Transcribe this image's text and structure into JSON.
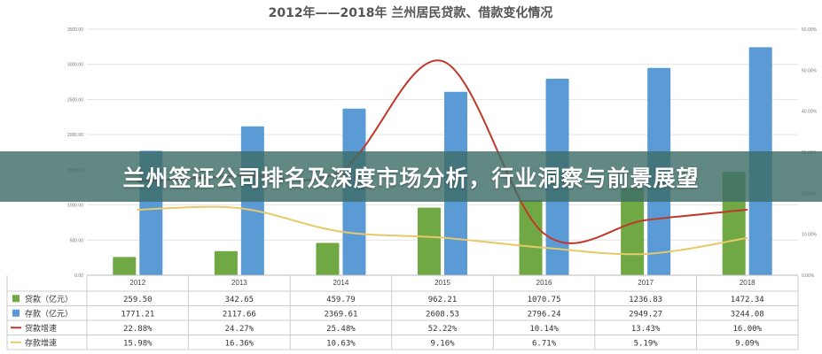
{
  "chart_data": {
    "type": "bar",
    "title": "2012年——2018年 兰州居民贷款、借款变化情况",
    "categories": [
      "2012",
      "2013",
      "2014",
      "2015",
      "2016",
      "2017",
      "2018"
    ],
    "bar_series": [
      {
        "name": "贷款（亿元）",
        "color": "#70a844",
        "values": [
          "259.50",
          "342.65",
          "459.79",
          "962.21",
          "1070.75",
          "1236.83",
          "1472.34"
        ]
      },
      {
        "name": "存款（亿元）",
        "color": "#5b9bd5",
        "values": [
          "1771.21",
          "2117.66",
          "2369.61",
          "2608.53",
          "2796.24",
          "2949.27",
          "3244.08"
        ]
      }
    ],
    "line_series": [
      {
        "name": "贷款增速",
        "color": "#c0392b",
        "values": [
          "22.88%",
          "24.27%",
          "25.48%",
          "52.22%",
          "10.14%",
          "13.43%",
          "16.00%"
        ]
      },
      {
        "name": "存款增速",
        "color": "#e8c96a",
        "values": [
          "15.98%",
          "16.36%",
          "10.63%",
          "9.16%",
          "6.71%",
          "5.19%",
          "9.09%"
        ]
      }
    ],
    "y_left": {
      "ticks": [
        "0.00",
        "500.00",
        "1000.00",
        "1500.00",
        "2000.00",
        "2500.00",
        "3000.00",
        "3500.00"
      ],
      "range": [
        0,
        3500
      ]
    },
    "y_right": {
      "ticks": [
        "0.00%",
        "10.00%",
        "20.00%",
        "30.00%",
        "40.00%",
        "50.00%",
        "60.00%"
      ],
      "range": [
        0,
        60
      ]
    },
    "grid": "horizontal",
    "legend_placement": "data-table-left"
  },
  "banner": {
    "text": "兰州签证公司排名及深度市场分析，行业洞察与前景展望"
  }
}
